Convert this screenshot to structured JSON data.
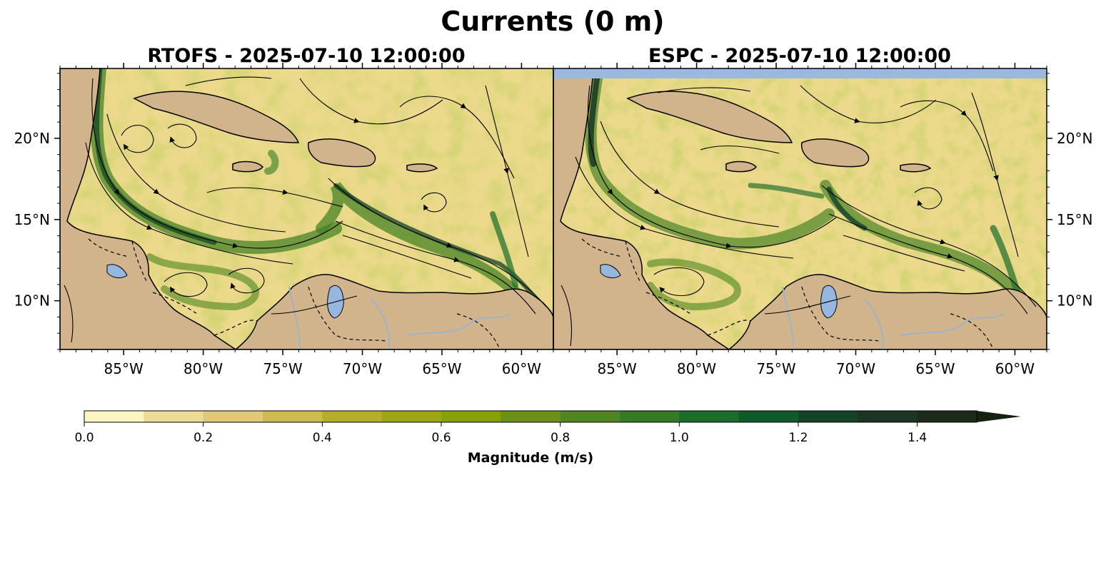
{
  "figure": {
    "title": "Currents (0 m)"
  },
  "panels": [
    {
      "model": "RTOFS",
      "datetime": "2025-07-10 12:00:00",
      "title": "RTOFS - 2025-07-10 12:00:00"
    },
    {
      "model": "ESPC",
      "datetime": "2025-07-10 12:00:00",
      "title": "ESPC - 2025-07-10 12:00:00"
    }
  ],
  "map_extent": {
    "lon_min": -89,
    "lon_max": -58,
    "lat_min": 7,
    "lat_max": 24.3
  },
  "longitude_ticks": [
    {
      "value": -85,
      "label": "85°W"
    },
    {
      "value": -80,
      "label": "80°W"
    },
    {
      "value": -75,
      "label": "75°W"
    },
    {
      "value": -70,
      "label": "70°W"
    },
    {
      "value": -65,
      "label": "65°W"
    },
    {
      "value": -60,
      "label": "60°W"
    }
  ],
  "latitude_ticks": [
    {
      "value": 20,
      "label": "20°N"
    },
    {
      "value": 15,
      "label": "15°N"
    },
    {
      "value": 10,
      "label": "10°N"
    }
  ],
  "colorbar": {
    "label": "Magnitude (m/s)",
    "min": 0.0,
    "max": 1.5,
    "step": 0.1,
    "extend": "max",
    "tick_values": [
      0.0,
      0.2,
      0.4,
      0.6,
      0.8,
      1.0,
      1.2,
      1.4
    ],
    "tick_labels": [
      "0.0",
      "0.2",
      "0.4",
      "0.6",
      "0.8",
      "1.0",
      "1.2",
      "1.4"
    ],
    "colors": [
      "#fbf5c2",
      "#eddb95",
      "#e0c877",
      "#cfba4f",
      "#b6ad2f",
      "#9fa51b",
      "#86a00e",
      "#6b9118",
      "#4f861f",
      "#337c25",
      "#1c6c2b",
      "#0f5b2a",
      "#134427",
      "#1a3622",
      "#1b2a19"
    ],
    "extend_color": "#15220f"
  },
  "colors": {
    "land": "#d2b48c",
    "ocean_base": "#ecd98c",
    "lake": "#96b7e0",
    "river": "#9db3c7",
    "missing_band": "#9ab8e0",
    "streamline": "#000000"
  }
}
